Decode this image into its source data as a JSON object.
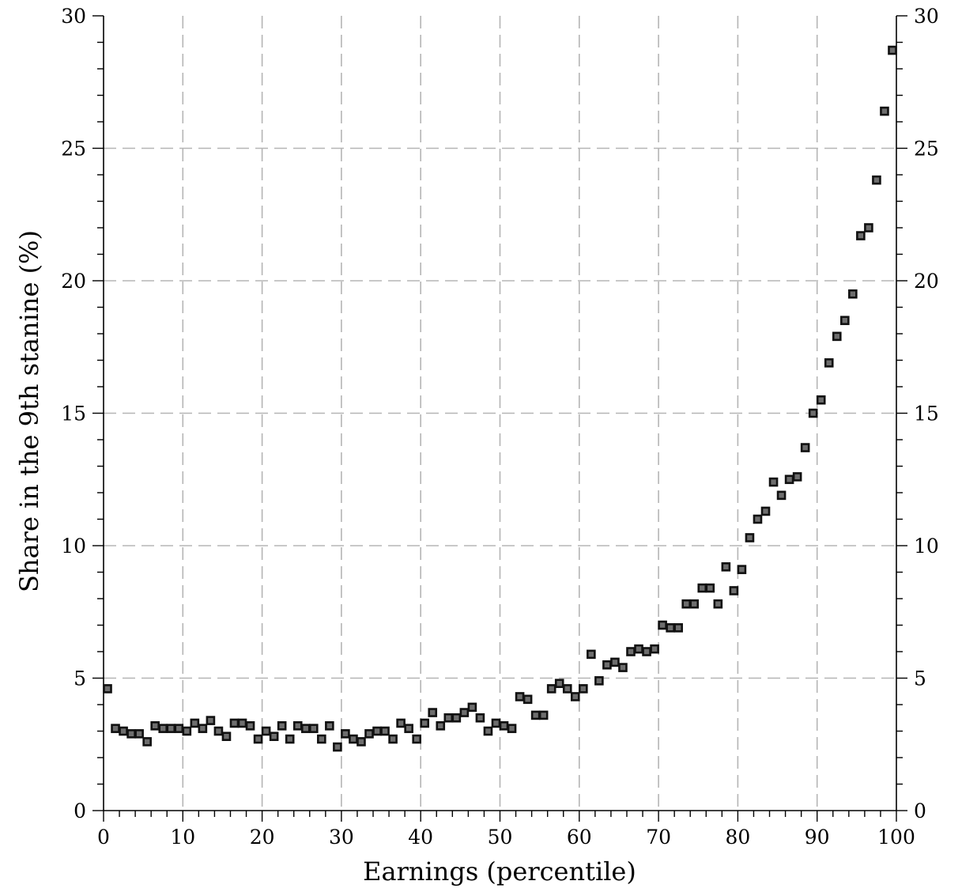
{
  "chart_data": {
    "type": "scatter",
    "title": "",
    "xlabel": "Earnings (percentile)",
    "ylabel": "Share in the 9th stanine (%)",
    "xlim": [
      0,
      100
    ],
    "ylim": [
      0,
      30
    ],
    "x_ticks": [
      0,
      10,
      20,
      30,
      40,
      50,
      60,
      70,
      80,
      90,
      100
    ],
    "y_ticks": [
      0,
      5,
      10,
      15,
      20,
      25,
      30
    ],
    "grid": true,
    "right_axis_mirrored": true,
    "marker": "square",
    "series": [
      {
        "x": [
          0.5,
          1.5,
          2.5,
          3.5,
          4.5,
          5.5,
          6.5,
          7.5,
          8.5,
          9.5,
          10.5,
          11.5,
          12.5,
          13.5,
          14.5,
          15.5,
          16.5,
          17.5,
          18.5,
          19.5,
          20.5,
          21.5,
          22.5,
          23.5,
          24.5,
          25.5,
          26.5,
          27.5,
          28.5,
          29.5,
          30.5,
          31.5,
          32.5,
          33.5,
          34.5,
          35.5,
          36.5,
          37.5,
          38.5,
          39.5,
          40.5,
          41.5,
          42.5,
          43.5,
          44.5,
          45.5,
          46.5,
          47.5,
          48.5,
          49.5,
          50.5,
          51.5,
          52.5,
          53.5,
          54.5,
          55.5,
          56.5,
          57.5,
          58.5,
          59.5,
          60.5,
          61.5,
          62.5,
          63.5,
          64.5,
          65.5,
          66.5,
          67.5,
          68.5,
          69.5,
          70.5,
          71.5,
          72.5,
          73.5,
          74.5,
          75.5,
          76.5,
          77.5,
          78.5,
          79.5,
          80.5,
          81.5,
          82.5,
          83.5,
          84.5,
          85.5,
          86.5,
          87.5,
          88.5,
          89.5,
          90.5,
          91.5,
          92.5,
          93.5,
          94.5,
          95.5,
          96.5,
          97.5,
          98.5,
          99.5
        ],
        "y": [
          4.6,
          3.1,
          3.0,
          2.9,
          2.9,
          2.6,
          3.2,
          3.1,
          3.1,
          3.1,
          3.0,
          3.3,
          3.1,
          3.4,
          3.0,
          2.8,
          3.3,
          3.3,
          3.2,
          2.7,
          3.0,
          2.8,
          3.2,
          2.7,
          3.2,
          3.1,
          3.1,
          2.7,
          3.2,
          2.4,
          2.9,
          2.7,
          2.6,
          2.9,
          3.0,
          3.0,
          2.7,
          3.3,
          3.1,
          2.7,
          3.3,
          3.7,
          3.2,
          3.5,
          3.5,
          3.7,
          3.9,
          3.5,
          3.0,
          3.3,
          3.2,
          3.1,
          4.3,
          4.2,
          3.6,
          3.6,
          4.6,
          4.8,
          4.6,
          4.3,
          4.6,
          5.9,
          4.9,
          5.5,
          5.6,
          5.4,
          6.0,
          6.1,
          6.0,
          6.1,
          7.0,
          6.9,
          6.9,
          7.8,
          7.8,
          8.4,
          8.4,
          7.8,
          9.2,
          8.3,
          9.1,
          10.3,
          11.0,
          11.3,
          12.4,
          11.9,
          12.5,
          12.6,
          13.7,
          15.0,
          15.5,
          16.9,
          17.9,
          18.5,
          19.5,
          21.7,
          22.0,
          23.8,
          26.4,
          28.7
        ]
      }
    ]
  }
}
